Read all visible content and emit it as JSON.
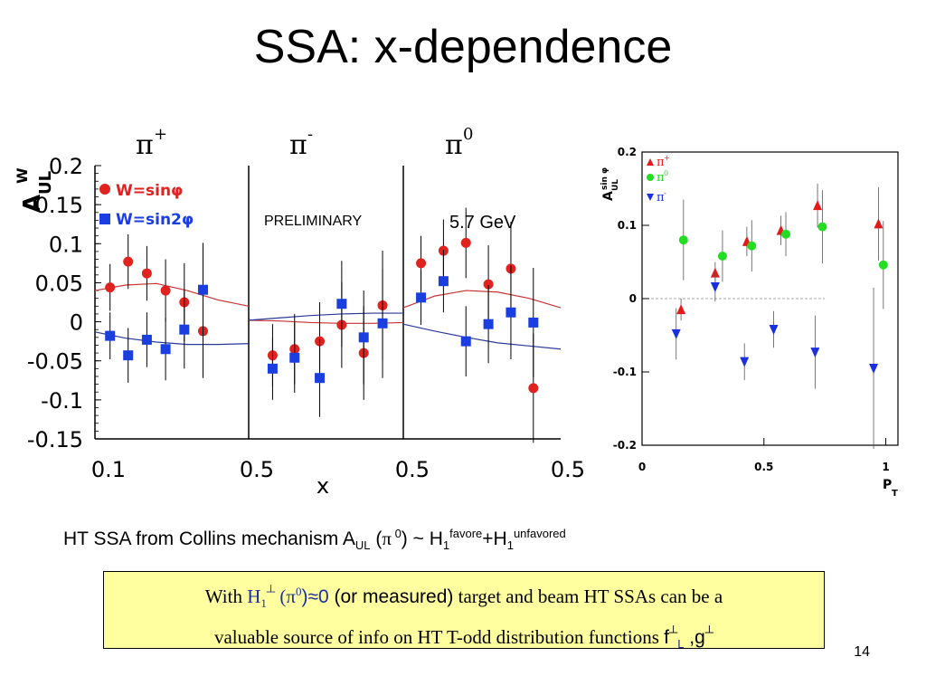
{
  "slide": {
    "title": "SSA: x-dependence",
    "page_number": "14"
  },
  "left_chart_text": {
    "panel_titles": [
      {
        "base": "π",
        "sup": "+"
      },
      {
        "base": "π",
        "sup": "-"
      },
      {
        "base": "π",
        "sup": "0"
      }
    ],
    "ylabel_main": "A",
    "ylabel_sub": "UL",
    "ylabel_sup": "W",
    "xlabel": "x",
    "preliminary": "PRELIMINARY",
    "energy": "5.7 GeV",
    "legend": [
      "W=sinφ",
      "W=sin2φ"
    ],
    "y_ticks": [
      "0.2",
      "0.15",
      "0.1",
      "0.05",
      "0",
      "-0.05",
      "-0.1",
      "-0.15"
    ],
    "x_ticks": [
      "0.1",
      "0.5",
      "0.5",
      "0.5"
    ]
  },
  "right_chart_text": {
    "ylabel_main": "A",
    "ylabel_sub": "UL",
    "ylabel_sup": "sin φ",
    "xlabel_main": "P",
    "xlabel_sub": "T",
    "y_ticks": [
      "0.2",
      "0.1",
      "0",
      "-0.1",
      "-0.2"
    ],
    "x_ticks": [
      "0",
      "0.5",
      "1"
    ],
    "legend": [
      {
        "base": "π",
        "sup": "+"
      },
      {
        "base": "π",
        "sup": "0"
      },
      {
        "base": "π",
        "sup": "-"
      }
    ]
  },
  "chart_data": [
    {
      "type": "scatter",
      "ylim": [
        -0.15,
        0.2
      ],
      "colors": {
        "sinphi": "#e0231f",
        "sin2phi": "#1a3ee0",
        "curve_red": "#c83232",
        "curve_blue": "#2a3a9a"
      },
      "panels": [
        {
          "xlim": [
            0.1,
            0.5
          ],
          "series": [
            {
              "name": "W=sinφ",
              "x": [
                0.102,
                0.16,
                0.22,
                0.28,
                0.34,
                0.4
              ],
              "y": [
                0.044,
                0.077,
                0.062,
                0.04,
                0.025,
                -0.012
              ],
              "err": [
                0.03,
                0.035,
                0.035,
                0.04,
                0.05,
                0.06
              ]
            },
            {
              "name": "W=sin2φ",
              "x": [
                0.102,
                0.16,
                0.22,
                0.28,
                0.34,
                0.4
              ],
              "y": [
                -0.018,
                -0.043,
                -0.023,
                -0.035,
                -0.01,
                0.041
              ],
              "err": [
                0.03,
                0.035,
                0.035,
                0.04,
                0.05,
                0.06
              ]
            }
          ],
          "curve_red_y": [
            0.04,
            0.047,
            0.049,
            0.04,
            0.028,
            0.02
          ],
          "curve_blue_y": [
            -0.013,
            -0.021,
            -0.026,
            -0.029,
            -0.029,
            -0.028
          ]
        },
        {
          "xlim": [
            0.1,
            0.5
          ],
          "series": [
            {
              "name": "W=sinφ",
              "x": [
                0.13,
                0.2,
                0.28,
                0.35,
                0.42,
                0.48
              ],
              "y": [
                -0.043,
                -0.035,
                -0.025,
                -0.004,
                -0.04,
                0.021
              ],
              "err": [
                0.04,
                0.045,
                0.05,
                0.055,
                0.06,
                0.07
              ]
            },
            {
              "name": "W=sin2φ",
              "x": [
                0.13,
                0.2,
                0.28,
                0.35,
                0.42,
                0.48
              ],
              "y": [
                -0.06,
                -0.046,
                -0.072,
                0.023,
                -0.02,
                -0.002
              ],
              "err": [
                0.04,
                0.045,
                0.05,
                0.055,
                0.06,
                0.07
              ]
            }
          ],
          "curve_red_y": [
            0.002,
            0.001,
            -0.001,
            -0.002,
            -0.002,
            -0.001
          ],
          "curve_blue_y": [
            0.002,
            0.005,
            0.008,
            0.01,
            0.011,
            0.011
          ]
        },
        {
          "xlim": [
            0.1,
            0.5
          ],
          "series": [
            {
              "name": "W=sinφ",
              "x": [
                0.11,
                0.18,
                0.25,
                0.32,
                0.39,
                0.46
              ],
              "y": [
                0.075,
                0.091,
                0.101,
                0.048,
                0.068,
                -0.085
              ],
              "err": [
                0.035,
                0.04,
                0.045,
                0.05,
                0.06,
                0.07
              ]
            },
            {
              "name": "W=sin2φ",
              "x": [
                0.11,
                0.18,
                0.25,
                0.32,
                0.39,
                0.46
              ],
              "y": [
                0.031,
                0.052,
                -0.025,
                -0.003,
                0.012,
                -0.001
              ],
              "err": [
                0.035,
                0.04,
                0.045,
                0.05,
                0.06,
                0.07
              ]
            }
          ],
          "curve_red_y": [
            0.018,
            0.033,
            0.04,
            0.038,
            0.03,
            0.018
          ],
          "curve_blue_y": [
            -0.003,
            -0.012,
            -0.02,
            -0.027,
            -0.031,
            -0.035
          ]
        }
      ]
    },
    {
      "type": "scatter",
      "xlim": [
        0,
        1.05
      ],
      "ylim": [
        -0.2,
        0.2
      ],
      "colors": {
        "pi_plus": "#e31a1a",
        "pi_zero": "#22dd22",
        "pi_minus": "#1a2fe0"
      },
      "series": [
        {
          "name": "π+",
          "marker": "triangle-up",
          "x": [
            0.16,
            0.3,
            0.43,
            0.57,
            0.72,
            0.97
          ],
          "y": [
            -0.015,
            0.035,
            0.078,
            0.093,
            0.127,
            0.102
          ],
          "err": [
            0.015,
            0.015,
            0.02,
            0.02,
            0.03,
            0.05
          ]
        },
        {
          "name": "π0",
          "marker": "circle",
          "x": [
            0.17,
            0.33,
            0.45,
            0.59,
            0.74,
            0.99
          ],
          "y": [
            0.08,
            0.058,
            0.072,
            0.088,
            0.098,
            0.046
          ],
          "err": [
            0.055,
            0.035,
            0.035,
            0.03,
            0.05,
            0.06
          ]
        },
        {
          "name": "π-",
          "marker": "triangle-down",
          "x": [
            0.14,
            0.3,
            0.42,
            0.54,
            0.71,
            0.95
          ],
          "y": [
            -0.048,
            0.016,
            -0.086,
            -0.042,
            -0.073,
            -0.095
          ],
          "err": [
            0.035,
            0.02,
            0.025,
            0.025,
            0.05,
            0.11
          ]
        }
      ]
    }
  ],
  "caption": {
    "text": "HT SSA from Collins mechanism A",
    "sub": "UL",
    "paren_open": " (",
    "pi": "π",
    "pi_sup": " 0",
    "paren_close": ") ~ H",
    "h_sub1": "1",
    "favore": "favore",
    "plus": "+H",
    "h_sub2": "1",
    "unfavored": "unfavored"
  },
  "box": {
    "with": "With ",
    "h": "H",
    "h_sub": "1",
    "perp": "┴",
    "paren_open": " (",
    "pi": "π",
    "pi_sup": "0",
    "approx": ")≈0",
    "measured": " (or measured)",
    "text1": " target and beam HT SSAs can be a",
    "text2": "valuable source of info on HT T-odd distribution functions ",
    "f": "f",
    "f_perp": "┴",
    "f_sub": "L",
    "g": " ,g",
    "g_perp": "┴"
  }
}
